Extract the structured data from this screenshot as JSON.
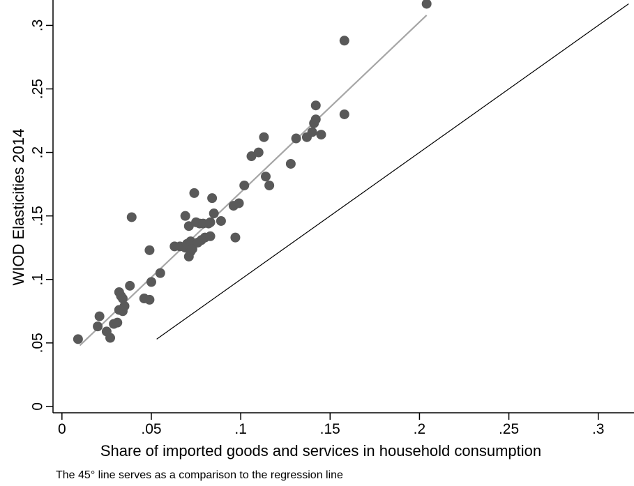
{
  "chart_data": {
    "type": "scatter",
    "title": "",
    "xlabel": "Share of imported goods and services in household consumption",
    "ylabel": "WIOD Elasticities 2014",
    "note": "The 45° line serves as a comparison to the regression line",
    "xlim": [
      -0.005,
      0.32
    ],
    "ylim": [
      -0.005,
      0.32
    ],
    "x_ticks": [
      0,
      0.05,
      0.1,
      0.15,
      0.2,
      0.25,
      0.3
    ],
    "x_tick_labels": [
      "0",
      ".05",
      ".1",
      ".15",
      ".2",
      ".25",
      ".3"
    ],
    "y_ticks": [
      0,
      0.05,
      0.1,
      0.15,
      0.2,
      0.25,
      0.3
    ],
    "y_tick_labels": [
      "0",
      ".05",
      ".1",
      ".15",
      ".2",
      ".25",
      ".3"
    ],
    "grid": false,
    "colors": {
      "points": "#595959",
      "regression": "#a6a6a6",
      "reference": "#000000"
    },
    "points": [
      [
        0.009,
        0.053
      ],
      [
        0.02,
        0.063
      ],
      [
        0.021,
        0.071
      ],
      [
        0.025,
        0.059
      ],
      [
        0.027,
        0.054
      ],
      [
        0.029,
        0.065
      ],
      [
        0.031,
        0.066
      ],
      [
        0.032,
        0.076
      ],
      [
        0.032,
        0.09
      ],
      [
        0.033,
        0.087
      ],
      [
        0.034,
        0.085
      ],
      [
        0.034,
        0.075
      ],
      [
        0.035,
        0.079
      ],
      [
        0.038,
        0.095
      ],
      [
        0.039,
        0.149
      ],
      [
        0.046,
        0.085
      ],
      [
        0.049,
        0.084
      ],
      [
        0.049,
        0.123
      ],
      [
        0.05,
        0.098
      ],
      [
        0.055,
        0.105
      ],
      [
        0.063,
        0.126
      ],
      [
        0.066,
        0.126
      ],
      [
        0.069,
        0.15
      ],
      [
        0.069,
        0.125
      ],
      [
        0.07,
        0.128
      ],
      [
        0.071,
        0.142
      ],
      [
        0.071,
        0.118
      ],
      [
        0.072,
        0.122
      ],
      [
        0.072,
        0.13
      ],
      [
        0.073,
        0.124
      ],
      [
        0.074,
        0.168
      ],
      [
        0.075,
        0.145
      ],
      [
        0.076,
        0.129
      ],
      [
        0.077,
        0.144
      ],
      [
        0.078,
        0.131
      ],
      [
        0.079,
        0.144
      ],
      [
        0.08,
        0.133
      ],
      [
        0.082,
        0.144
      ],
      [
        0.083,
        0.145
      ],
      [
        0.083,
        0.134
      ],
      [
        0.084,
        0.164
      ],
      [
        0.085,
        0.152
      ],
      [
        0.089,
        0.146
      ],
      [
        0.096,
        0.158
      ],
      [
        0.097,
        0.133
      ],
      [
        0.099,
        0.16
      ],
      [
        0.102,
        0.174
      ],
      [
        0.106,
        0.197
      ],
      [
        0.11,
        0.2
      ],
      [
        0.113,
        0.212
      ],
      [
        0.114,
        0.181
      ],
      [
        0.116,
        0.174
      ],
      [
        0.128,
        0.191
      ],
      [
        0.131,
        0.211
      ],
      [
        0.137,
        0.212
      ],
      [
        0.14,
        0.216
      ],
      [
        0.141,
        0.223
      ],
      [
        0.142,
        0.226
      ],
      [
        0.142,
        0.237
      ],
      [
        0.145,
        0.214
      ],
      [
        0.158,
        0.288
      ],
      [
        0.158,
        0.23
      ],
      [
        0.204,
        0.317
      ]
    ],
    "regression_line": {
      "x": [
        0.01,
        0.204
      ],
      "y": [
        0.048,
        0.308
      ]
    },
    "reference_line_45": {
      "x": [
        0.053,
        0.317
      ],
      "y": [
        0.053,
        0.317
      ]
    }
  }
}
